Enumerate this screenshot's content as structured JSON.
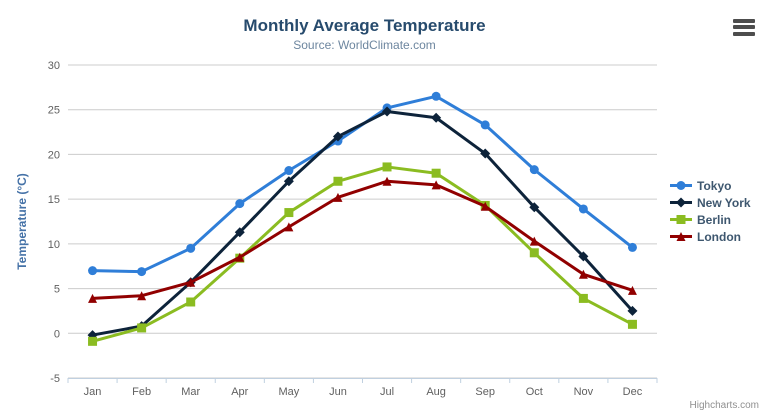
{
  "title": "Monthly Average Temperature",
  "subtitle": "Source: WorldClimate.com",
  "credits": "Highcharts.com",
  "export_menu": "context-menu",
  "colors": {
    "title": "#274b6d",
    "subtitle": "#6d869f",
    "axis_title": "#4572a7",
    "tick_label": "#606060",
    "grid_line": "#cccccc",
    "axis_line": "#c0d0e0",
    "legend_text": "#3e576f",
    "credits": "#909090",
    "menu_icon": "#4d4d4d",
    "background": "#ffffff"
  },
  "chart_data": {
    "type": "line",
    "title": "Monthly Average Temperature",
    "subtitle": "Source: WorldClimate.com",
    "categories": [
      "Jan",
      "Feb",
      "Mar",
      "Apr",
      "May",
      "Jun",
      "Jul",
      "Aug",
      "Sep",
      "Oct",
      "Nov",
      "Dec"
    ],
    "series": [
      {
        "name": "Tokyo",
        "color": "#2f7ed8",
        "marker": "circle",
        "values": [
          7.0,
          6.9,
          9.5,
          14.5,
          18.2,
          21.5,
          25.2,
          26.5,
          23.3,
          18.3,
          13.9,
          9.6
        ]
      },
      {
        "name": "New York",
        "color": "#0d233a",
        "marker": "diamond",
        "values": [
          -0.2,
          0.8,
          5.7,
          11.3,
          17.0,
          22.0,
          24.8,
          24.1,
          20.1,
          14.1,
          8.6,
          2.5
        ]
      },
      {
        "name": "Berlin",
        "color": "#8bbc21",
        "marker": "square",
        "values": [
          -0.9,
          0.6,
          3.5,
          8.4,
          13.5,
          17.0,
          18.6,
          17.9,
          14.3,
          9.0,
          3.9,
          1.0
        ]
      },
      {
        "name": "London",
        "color": "#910000",
        "marker": "triangle",
        "values": [
          3.9,
          4.2,
          5.7,
          8.5,
          11.9,
          15.2,
          17.0,
          16.6,
          14.2,
          10.3,
          6.6,
          4.8
        ]
      }
    ],
    "xlabel": "",
    "ylabel": "Temperature (°C)",
    "ylim": [
      -5,
      30
    ],
    "ytick_step": 5,
    "grid": true,
    "legend_position": "right"
  }
}
